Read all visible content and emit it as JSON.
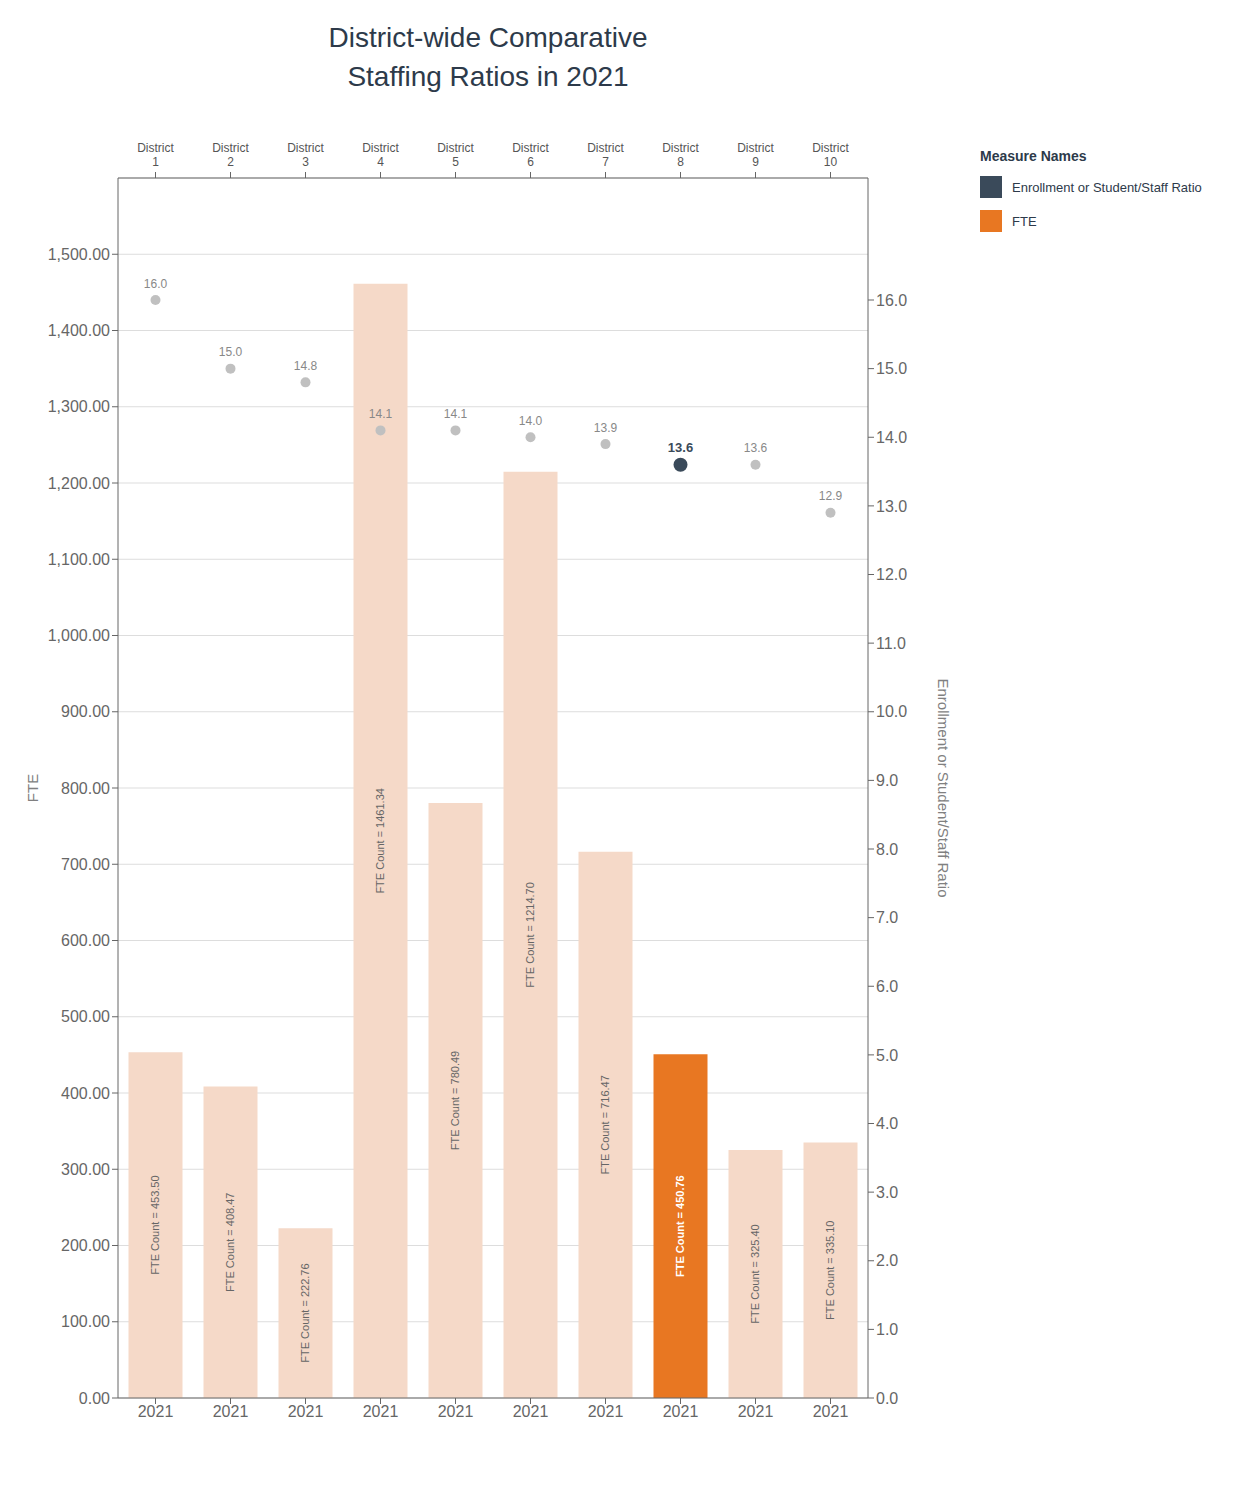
{
  "chart_data": {
    "type": "bar",
    "title": "District-wide Comparative\nStaffing Ratios in 2021",
    "categories": [
      "District\n1",
      "District\n2",
      "District\n3",
      "District\n4",
      "District\n5",
      "District\n6",
      "District\n7",
      "District\n8",
      "District\n9",
      "District\n10"
    ],
    "xticks": [
      {
        "value": "District\n1",
        "label": "2021"
      },
      {
        "value": "District\n2",
        "label": "2021"
      },
      {
        "value": "District\n3",
        "label": "2021"
      },
      {
        "value": "District\n4",
        "label": "2021"
      },
      {
        "value": "District\n5",
        "label": "2021"
      },
      {
        "value": "District\n6",
        "label": "2021"
      },
      {
        "value": "District\n7",
        "label": "2021"
      },
      {
        "value": "District\n8",
        "label": "2021"
      },
      {
        "value": "District\n9",
        "label": "2021"
      },
      {
        "value": "District\n10",
        "label": "2021"
      }
    ],
    "y_label": "FTE",
    "y2_label": "Enrollment or Student/Staff Ratio",
    "ylim": [
      0,
      1600
    ],
    "yticks": [
      {
        "value": 0,
        "label": "0.00"
      },
      {
        "value": 100,
        "label": "100.00"
      },
      {
        "value": 200,
        "label": "200.00"
      },
      {
        "value": 300,
        "label": "300.00"
      },
      {
        "value": 400,
        "label": "400.00"
      },
      {
        "value": 500,
        "label": "500.00"
      },
      {
        "value": 600,
        "label": "600.00"
      },
      {
        "value": 700,
        "label": "700.00"
      },
      {
        "value": 800,
        "label": "800.00"
      },
      {
        "value": 900,
        "label": "900.00"
      },
      {
        "value": 1000,
        "label": "1,000.00"
      },
      {
        "value": 1100,
        "label": "1,100.00"
      },
      {
        "value": 1200,
        "label": "1,200.00"
      },
      {
        "value": 1300,
        "label": "1,300.00"
      },
      {
        "value": 1400,
        "label": "1,400.00"
      },
      {
        "value": 1500,
        "label": "1,500.00"
      }
    ],
    "y2lim": [
      0,
      17.778
    ],
    "y2ticks": [
      {
        "value": 0.0,
        "label": "0.0"
      },
      {
        "value": 1.0,
        "label": "1.0"
      },
      {
        "value": 2.0,
        "label": "2.0"
      },
      {
        "value": 3.0,
        "label": "3.0"
      },
      {
        "value": 4.0,
        "label": "4.0"
      },
      {
        "value": 5.0,
        "label": "5.0"
      },
      {
        "value": 6.0,
        "label": "6.0"
      },
      {
        "value": 7.0,
        "label": "7.0"
      },
      {
        "value": 8.0,
        "label": "8.0"
      },
      {
        "value": 9.0,
        "label": "9.0"
      },
      {
        "value": 10.0,
        "label": "10.0"
      },
      {
        "value": 11.0,
        "label": "11.0"
      },
      {
        "value": 12.0,
        "label": "12.0"
      },
      {
        "value": 13.0,
        "label": "13.0"
      },
      {
        "value": 14.0,
        "label": "14.0"
      },
      {
        "value": 15.0,
        "label": "15.0"
      },
      {
        "value": 16.0,
        "label": "16.0"
      }
    ],
    "grid": true,
    "legend": "right",
    "legend_title": "Measure Names",
    "data_labels": true,
    "series": [
      {
        "name": "FTE",
        "type": "bar",
        "color": "#e87722",
        "colors": [
          "#f5d9c8",
          "#f5d9c8",
          "#f5d9c8",
          "#f5d9c8",
          "#f5d9c8",
          "#f5d9c8",
          "#f5d9c8",
          "#e87722",
          "#f5d9c8",
          "#f5d9c8"
        ],
        "values": [
          453.5,
          408.47,
          222.76,
          1461.34,
          780.49,
          1214.7,
          716.47,
          450.76,
          325.4,
          335.1
        ],
        "value_labels": [
          "FTE Count = 453.50",
          "FTE Count = 408.47",
          "FTE Count = 222.76",
          "FTE Count = 1461.34",
          "FTE Count = 780.49",
          "FTE Count = 1214.70",
          "FTE Count = 716.47",
          "FTE Count = 450.76",
          "FTE Count = 325.40",
          "FTE Count = 335.10"
        ]
      },
      {
        "name": "Enrollment or Student/Staff Ratio",
        "type": "scatter",
        "axis": "y2",
        "color": "#3a4a5a",
        "colors": [
          "#c0c0c0",
          "#c0c0c0",
          "#c0c0c0",
          "#c0c0c0",
          "#c0c0c0",
          "#c0c0c0",
          "#c0c0c0",
          "#3a4a5a",
          "#c0c0c0",
          "#c0c0c0"
        ],
        "values": [
          16.0,
          15.0,
          14.8,
          14.1,
          14.1,
          14.0,
          13.9,
          13.6,
          13.6,
          12.9
        ],
        "value_labels": [
          "16.0",
          "15.0",
          "14.8",
          "14.1",
          "14.1",
          "14.0",
          "13.9",
          "13.6",
          "13.6",
          "12.9"
        ]
      }
    ]
  }
}
